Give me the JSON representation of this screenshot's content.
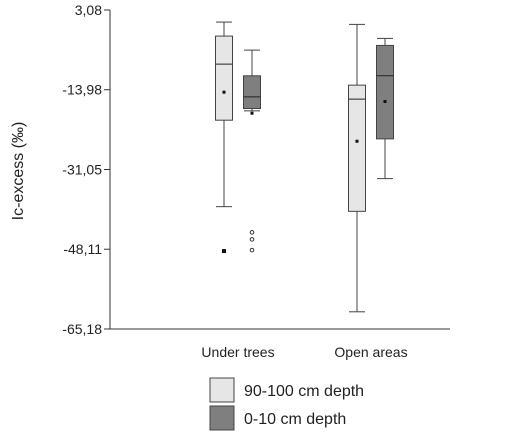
{
  "chart_data": {
    "type": "box",
    "title": "",
    "ylabel": "Ic-excess (‰)",
    "xlabel": "",
    "ylim": [
      -65.18,
      3.08
    ],
    "yticks": [
      3.08,
      -13.98,
      -31.05,
      -48.11,
      -65.18
    ],
    "ytick_labels": [
      "3,08",
      "-13,98",
      "-31,05",
      "-48,11",
      "-65,18"
    ],
    "categories": [
      "Under trees",
      "Open areas"
    ],
    "legend_position": "bottom",
    "series": [
      {
        "name": "90-100 cm depth",
        "color": "#e6e6e6",
        "boxes": [
          {
            "category": "Under trees",
            "min": -39,
            "q1": -20.5,
            "median": -8.5,
            "q3": -2.5,
            "max": 0.5,
            "mean": -14.5,
            "outliers": [],
            "mean_outlier": [
              -48.5
            ]
          },
          {
            "category": "Open areas",
            "min": -61.5,
            "q1": -40,
            "median": -16,
            "q3": -13,
            "max": 0,
            "mean": -25,
            "outliers": [],
            "mean_outlier": []
          }
        ]
      },
      {
        "name": "0-10 cm depth",
        "color": "#7f7f7f",
        "boxes": [
          {
            "category": "Under trees",
            "min": -18.5,
            "q1": -18,
            "median": -15.5,
            "q3": -11,
            "max": -5.5,
            "mean": -19,
            "outliers": [
              -44.5,
              -46,
              -48.3
            ],
            "mean_outlier": []
          },
          {
            "category": "Open areas",
            "min": -33,
            "q1": -24.5,
            "median": -11,
            "q3": -4.5,
            "max": -3,
            "mean": -16.5,
            "outliers": [],
            "mean_outlier": []
          }
        ]
      }
    ]
  }
}
